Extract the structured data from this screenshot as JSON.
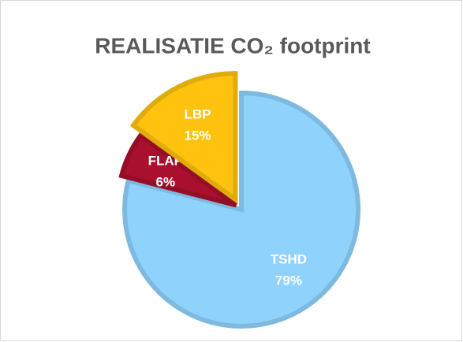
{
  "chart_data": {
    "type": "pie",
    "title": "REALISATIE CO₂ footprint",
    "categories": [
      "TSHD",
      "FLAP",
      "LBP"
    ],
    "values": [
      79,
      6,
      15
    ],
    "value_labels": [
      "79%",
      "6%",
      "15%"
    ],
    "colors": [
      "#8fd3fd",
      "#a8102e",
      "#ffc20e"
    ]
  }
}
